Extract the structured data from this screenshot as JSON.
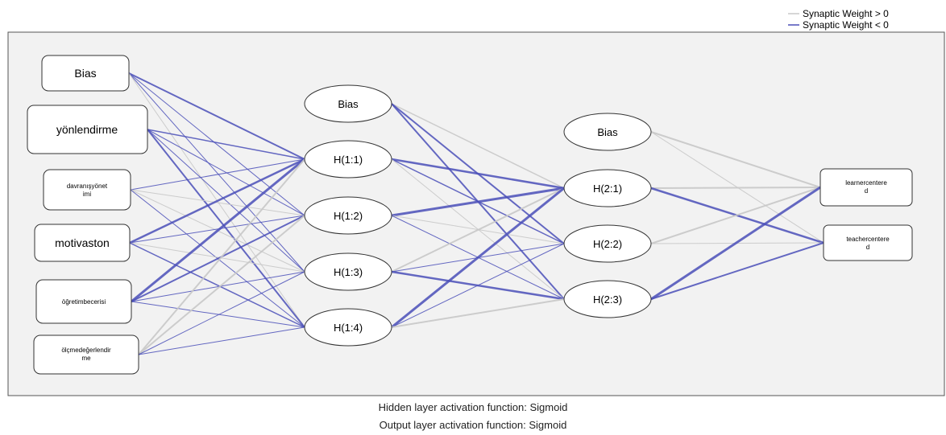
{
  "legend": {
    "positive_label": "Synaptic Weight > 0",
    "negative_label": "Synaptic Weight < 0",
    "positive_color": "#c8c8c8",
    "negative_color": "#4a4fb8"
  },
  "input_layer": [
    {
      "id": "in-bias",
      "label": "Bias"
    },
    {
      "id": "in-1",
      "label": "yönlendirme"
    },
    {
      "id": "in-2",
      "label": "davranışyönet\nimi"
    },
    {
      "id": "in-3",
      "label": "motivaston"
    },
    {
      "id": "in-4",
      "label": "öğretimbecerisi"
    },
    {
      "id": "in-5",
      "label": "ölçmedeğerlendir\nme"
    }
  ],
  "hidden_layer_1": [
    {
      "id": "h1-bias",
      "label": "Bias"
    },
    {
      "id": "h1-1",
      "label": "H(1:1)"
    },
    {
      "id": "h1-2",
      "label": "H(1:2)"
    },
    {
      "id": "h1-3",
      "label": "H(1:3)"
    },
    {
      "id": "h1-4",
      "label": "H(1:4)"
    }
  ],
  "hidden_layer_2": [
    {
      "id": "h2-bias",
      "label": "Bias"
    },
    {
      "id": "h2-1",
      "label": "H(2:1)"
    },
    {
      "id": "h2-2",
      "label": "H(2:2)"
    },
    {
      "id": "h2-3",
      "label": "H(2:3)"
    }
  ],
  "output_layer": [
    {
      "id": "out-1",
      "label": "learnercentere\nd"
    },
    {
      "id": "out-2",
      "label": "teachercentere\nd"
    }
  ],
  "footer": {
    "hidden_activation": "Hidden layer activation function: Sigmoid",
    "output_activation": "Output layer activation function: Sigmoid"
  }
}
